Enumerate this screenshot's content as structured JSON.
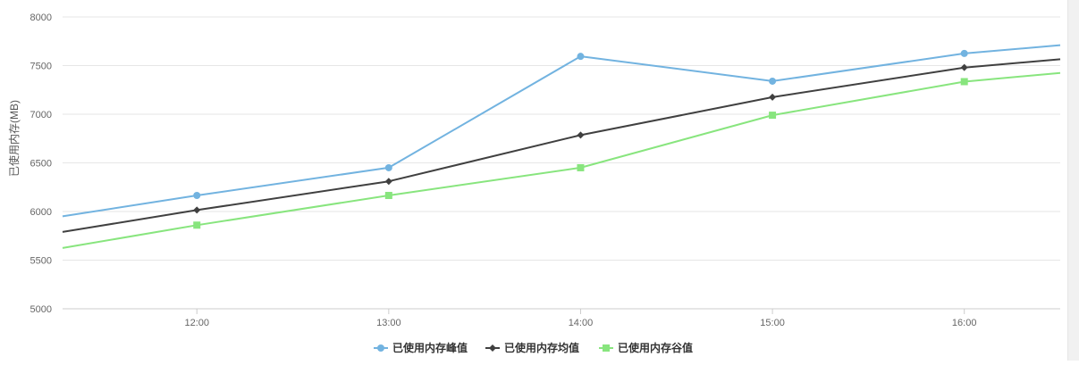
{
  "chart_data": {
    "type": "line",
    "ylabel": "已使用内存(MB)",
    "xlabel": "",
    "ylim": [
      5000,
      8000
    ],
    "yticks": [
      5000,
      5500,
      6000,
      6500,
      7000,
      7500,
      8000
    ],
    "xlim": [
      "11:18",
      "16:30"
    ],
    "xticks": [
      "12:00",
      "13:00",
      "14:00",
      "15:00",
      "16:00"
    ],
    "legend_position": "bottom-center",
    "grid": "horizontal",
    "series": [
      {
        "name": "已使用内存峰值",
        "color": "#72b3e0",
        "marker": "circle",
        "points": [
          {
            "x": "11:18",
            "y": 5950,
            "marker": false
          },
          {
            "x": "12:00",
            "y": 6165,
            "marker": true
          },
          {
            "x": "13:00",
            "y": 6450,
            "marker": true
          },
          {
            "x": "14:00",
            "y": 7595,
            "marker": true
          },
          {
            "x": "15:00",
            "y": 7340,
            "marker": true
          },
          {
            "x": "16:00",
            "y": 7625,
            "marker": true
          },
          {
            "x": "16:30",
            "y": 7710,
            "marker": false
          }
        ]
      },
      {
        "name": "已使用内存均值",
        "color": "#404040",
        "marker": "diamond",
        "points": [
          {
            "x": "11:18",
            "y": 5790,
            "marker": false
          },
          {
            "x": "12:00",
            "y": 6015,
            "marker": true
          },
          {
            "x": "13:00",
            "y": 6310,
            "marker": true
          },
          {
            "x": "14:00",
            "y": 6785,
            "marker": true
          },
          {
            "x": "15:00",
            "y": 7175,
            "marker": true
          },
          {
            "x": "16:00",
            "y": 7480,
            "marker": true
          },
          {
            "x": "16:30",
            "y": 7565,
            "marker": false
          }
        ]
      },
      {
        "name": "已使用内存谷值",
        "color": "#88e57e",
        "marker": "square",
        "points": [
          {
            "x": "11:18",
            "y": 5625,
            "marker": false
          },
          {
            "x": "12:00",
            "y": 5860,
            "marker": true
          },
          {
            "x": "13:00",
            "y": 6165,
            "marker": true
          },
          {
            "x": "14:00",
            "y": 6450,
            "marker": true
          },
          {
            "x": "15:00",
            "y": 6990,
            "marker": true
          },
          {
            "x": "16:00",
            "y": 7335,
            "marker": true
          },
          {
            "x": "16:30",
            "y": 7425,
            "marker": false
          }
        ]
      }
    ]
  }
}
